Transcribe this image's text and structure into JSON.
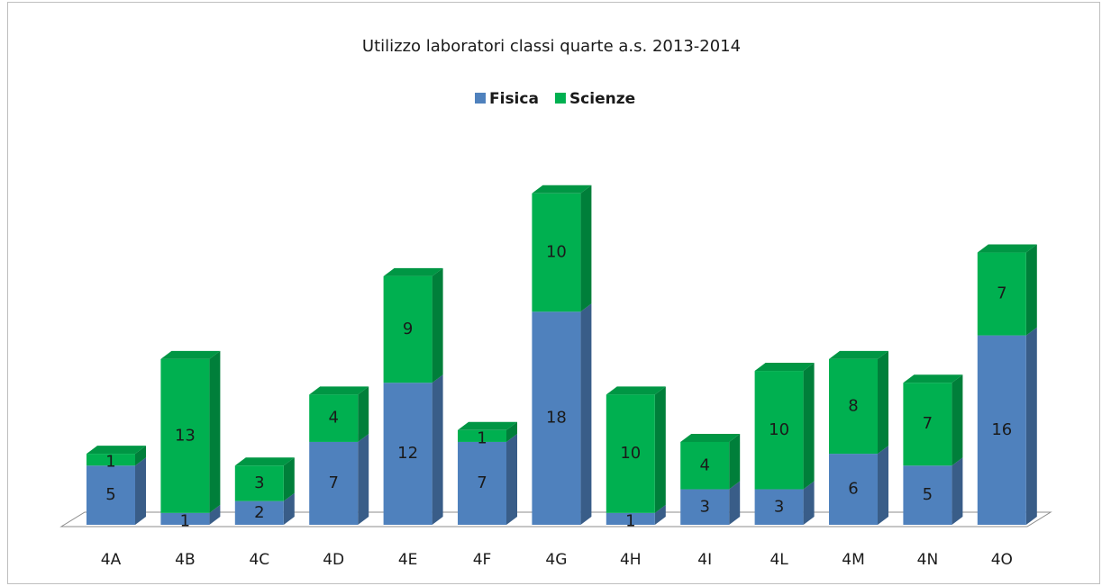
{
  "chart_data": {
    "type": "stacked_bar_3d",
    "title": "Utilizzo laboratori  classi quarte a.s. 2013-2014",
    "categories": [
      "4A",
      "4B",
      "4C",
      "4D",
      "4E",
      "4F",
      "4G",
      "4H",
      "4I",
      "4L",
      "4M",
      "4N",
      "4O"
    ],
    "series": [
      {
        "name": "Fisica",
        "color": "#4f81bd",
        "values": [
          5,
          1,
          2,
          7,
          12,
          7,
          18,
          1,
          3,
          3,
          6,
          5,
          16
        ]
      },
      {
        "name": "Scienze",
        "color": "#00b050",
        "values": [
          1,
          13,
          3,
          4,
          9,
          1,
          10,
          10,
          4,
          10,
          8,
          7,
          7
        ]
      }
    ],
    "legend": "top"
  }
}
